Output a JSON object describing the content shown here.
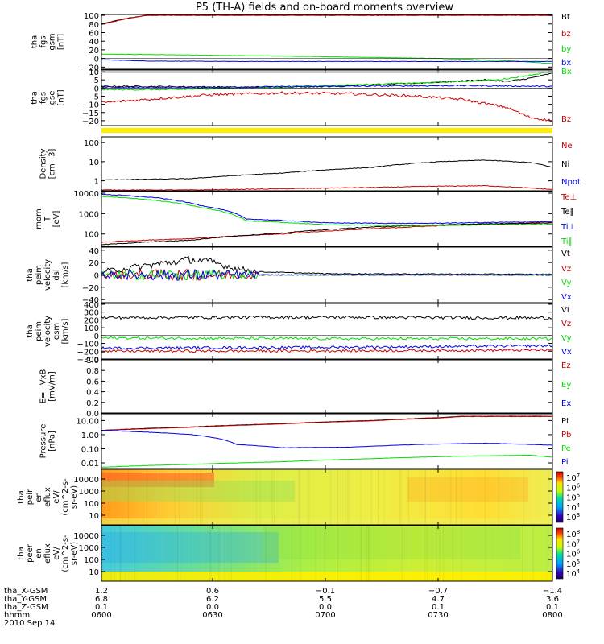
{
  "title": "P5 (TH-A) fields and on-board moments overview",
  "colors": {
    "black": "#000000",
    "red": "#cc0000",
    "green": "#00dd00",
    "blue": "#0000ee",
    "yellow": "#ffee00"
  },
  "chart_data": [
    {
      "type": "line",
      "panel": "fgs_gsm",
      "ylabel": [
        "tha",
        "fgs",
        "gsm",
        "[nT]"
      ],
      "yticks": [
        "100",
        "80",
        "60",
        "40",
        "20",
        "0",
        "−20"
      ],
      "ylim": [
        -25,
        102
      ],
      "series": [
        {
          "name": "Bt",
          "color": "#000000",
          "x": [
            0,
            0.05,
            0.1
          ],
          "y": [
            80,
            92,
            100
          ]
        },
        {
          "name": "bz",
          "color": "#cc0000",
          "x": [
            0,
            0.05,
            0.1
          ],
          "y": [
            79,
            91,
            100
          ]
        },
        {
          "name": "by",
          "color": "#00dd00",
          "x": [
            0,
            0.2,
            0.5,
            0.75,
            0.9,
            1.0
          ],
          "y": [
            10,
            8,
            4,
            0,
            -5,
            -12
          ]
        },
        {
          "name": "bx",
          "color": "#0000ee",
          "x": [
            0,
            0.1,
            0.3,
            0.5,
            0.8,
            1.0
          ],
          "y": [
            -3,
            -6,
            -7,
            -7,
            -7,
            -7
          ]
        }
      ]
    },
    {
      "type": "line",
      "panel": "fgs_gse",
      "ylabel": [
        "tha",
        "fgs",
        "gse",
        "[nT]"
      ],
      "yticks": [
        "10",
        "5",
        "0",
        "−5",
        "−10",
        "−15",
        "−20"
      ],
      "ylim": [
        -23,
        11
      ],
      "series": [
        {
          "name": "Bt",
          "color": "#000000",
          "x": [
            0,
            0.1,
            0.3,
            0.5,
            0.7,
            0.85,
            0.9,
            0.95,
            1.0
          ],
          "y": [
            1,
            1,
            0.5,
            1,
            3,
            5,
            4,
            6,
            9
          ]
        },
        {
          "name": "Bx",
          "color": "#00dd00",
          "x": [
            0,
            0.15,
            0.3,
            0.5,
            0.7,
            0.88,
            1.0
          ],
          "y": [
            -1,
            -1,
            0,
            1.5,
            3,
            5,
            10
          ]
        },
        {
          "name": "By",
          "color": "#0000ee",
          "x": [
            0,
            0.2,
            0.4,
            0.6,
            0.8,
            1.0
          ],
          "y": [
            0.5,
            0.5,
            0.8,
            1.2,
            1.5,
            1
          ]
        },
        {
          "name": "Bz",
          "color": "#cc0000",
          "x": [
            0,
            0.1,
            0.25,
            0.4,
            0.55,
            0.7,
            0.8,
            0.9,
            0.95,
            1.0
          ],
          "y": [
            -9,
            -7,
            -4,
            -3,
            -3.5,
            -5,
            -7,
            -12,
            -18,
            -20
          ]
        }
      ],
      "legend_right": [
        {
          "t": "Bz",
          "c": "#cc0000"
        }
      ]
    },
    {
      "type": "line",
      "panel": "density",
      "ylabel": [
        "Density",
        "[cm−3]"
      ],
      "yscale": "log",
      "yticks": [
        "100",
        "10",
        "1"
      ],
      "ylim": [
        0.3,
        200
      ],
      "series": [
        {
          "name": "Ne",
          "color": "#cc0000",
          "x": [
            0,
            0.2,
            0.4,
            0.6,
            0.75,
            0.85,
            1.0
          ],
          "y": [
            0.33,
            0.33,
            0.38,
            0.45,
            0.52,
            0.55,
            0.35
          ]
        },
        {
          "name": "Ni",
          "color": "#000000",
          "x": [
            0,
            0.2,
            0.4,
            0.6,
            0.75,
            0.85,
            0.95,
            1.0
          ],
          "y": [
            1.1,
            1.3,
            2.5,
            5,
            10,
            12,
            9,
            5
          ]
        },
        {
          "name": "Npot",
          "color": "#0000ee",
          "x": [],
          "y": []
        }
      ]
    },
    {
      "type": "line",
      "panel": "mom",
      "ylabel": [
        "mom",
        "T",
        "[eV]"
      ],
      "yscale": "log",
      "yticks": [
        "10000",
        "1000",
        "100"
      ],
      "ylim": [
        25,
        12000
      ],
      "series": [
        {
          "name": "Te⊥",
          "color": "#cc0000",
          "x": [
            0,
            0.2,
            0.4,
            0.6,
            0.8,
            1.0
          ],
          "y": [
            40,
            60,
            100,
            180,
            280,
            350
          ]
        },
        {
          "name": "Te∥",
          "color": "#000000",
          "x": [
            0,
            0.2,
            0.4,
            0.6,
            0.8,
            1.0
          ],
          "y": [
            30,
            50,
            110,
            220,
            300,
            360
          ]
        },
        {
          "name": "Ti⊥",
          "color": "#0000ee",
          "x": [
            0,
            0.12,
            0.22,
            0.32,
            0.5,
            0.7,
            1.0
          ],
          "y": [
            9000,
            6000,
            2500,
            550,
            350,
            330,
            400
          ]
        },
        {
          "name": "Ti∥",
          "color": "#00dd00",
          "x": [
            0,
            0.12,
            0.22,
            0.32,
            0.5,
            0.7,
            1.0
          ],
          "y": [
            7000,
            4500,
            2000,
            450,
            280,
            260,
            300
          ]
        }
      ]
    },
    {
      "type": "line",
      "panel": "peim_dsl",
      "ylabel": [
        "tha",
        "peim",
        "velocity",
        "dsl",
        "[km/s]"
      ],
      "yticks": [
        "40",
        "20",
        "0",
        "−20",
        "−40"
      ],
      "ylim": [
        -45,
        45
      ],
      "series": [
        {
          "name": "Vt",
          "color": "#000000",
          "x": [
            0,
            0.1,
            0.2,
            0.25,
            0.3,
            0.35,
            0.5,
            1.0
          ],
          "y": [
            5,
            15,
            25,
            20,
            10,
            5,
            2,
            1
          ]
        },
        {
          "name": "Vz",
          "color": "#cc0000",
          "x": [
            0,
            0.3,
            1.0
          ],
          "y": [
            0,
            0,
            0
          ]
        },
        {
          "name": "Vy",
          "color": "#00dd00",
          "x": [
            0,
            0.3,
            1.0
          ],
          "y": [
            0,
            0,
            0
          ]
        },
        {
          "name": "Vx",
          "color": "#0000ee",
          "x": [
            0,
            0.3,
            1.0
          ],
          "y": [
            0,
            0,
            0
          ]
        }
      ]
    },
    {
      "type": "line",
      "panel": "peim_gsm",
      "ylabel": [
        "tha",
        "peim",
        "velocity",
        "gsm",
        "[km/s]"
      ],
      "yticks": [
        "400",
        "300",
        "200",
        "100",
        "0",
        "−100",
        "−200",
        "−300"
      ],
      "ylim": [
        -300,
        410
      ],
      "series": [
        {
          "name": "Vt",
          "color": "#000000",
          "x": [
            0,
            0.5,
            1.0
          ],
          "y": [
            230,
            235,
            225
          ]
        },
        {
          "name": "Vz",
          "color": "#cc0000",
          "x": [
            0,
            0.5,
            1.0
          ],
          "y": [
            -200,
            -195,
            -185
          ]
        },
        {
          "name": "Vy",
          "color": "#00dd00",
          "x": [
            0,
            0.5,
            1.0
          ],
          "y": [
            -30,
            -40,
            -40
          ]
        },
        {
          "name": "Vx",
          "color": "#0000ee",
          "x": [
            0,
            0.5,
            1.0
          ],
          "y": [
            -160,
            -150,
            -130
          ]
        }
      ]
    },
    {
      "type": "line",
      "panel": "exb",
      "ylabel": [
        "E=−VxB",
        "[mV/m]"
      ],
      "yticks": [
        "1.0",
        "0.8",
        "0.6",
        "0.4",
        "0.2",
        "0.0"
      ],
      "ylim": [
        0,
        1
      ],
      "series": [
        {
          "name": "Ez",
          "color": "#cc0000",
          "x": [],
          "y": []
        },
        {
          "name": "Ey",
          "color": "#00dd00",
          "x": [],
          "y": []
        },
        {
          "name": "Ex",
          "color": "#0000ee",
          "x": [],
          "y": []
        }
      ]
    },
    {
      "type": "line",
      "panel": "pressure",
      "ylabel": [
        "Pressure",
        "[nPa]"
      ],
      "yscale": "log",
      "yticks": [
        "10.00",
        "1.00",
        "0.10",
        "0.01"
      ],
      "ylim": [
        0.004,
        30
      ],
      "series": [
        {
          "name": "Pt",
          "color": "#000000",
          "x": [
            0,
            0.2,
            0.4,
            0.6,
            0.75,
            0.8
          ],
          "y": [
            2,
            3.5,
            6,
            10,
            16,
            20
          ]
        },
        {
          "name": "Pb",
          "color": "#cc0000",
          "x": [
            0,
            0.2,
            0.4,
            0.6,
            0.75,
            0.8
          ],
          "y": [
            1.9,
            3.3,
            5.7,
            9.5,
            15,
            19
          ]
        },
        {
          "name": "Pe",
          "color": "#00dd00",
          "x": [
            0,
            0.2,
            0.4,
            0.6,
            0.8,
            0.95,
            1.0
          ],
          "y": [
            0.005,
            0.008,
            0.012,
            0.02,
            0.03,
            0.035,
            0.025
          ]
        },
        {
          "name": "Pi",
          "color": "#0000ee",
          "x": [
            0,
            0.2,
            0.3,
            0.4,
            0.55,
            0.7,
            0.85,
            1.0
          ],
          "y": [
            2,
            1,
            0.2,
            0.12,
            0.13,
            0.2,
            0.25,
            0.18
          ]
        }
      ]
    },
    {
      "type": "heatmap",
      "panel": "ion_eflux",
      "ylabel": [
        "tha",
        "peir",
        "en",
        "eflux",
        "eV/",
        "(cm^2-s-",
        "sr-eV)"
      ],
      "yscale": "log",
      "yticks": [
        "10000",
        "1000",
        "100",
        "10"
      ],
      "colorbar_ticks": [
        "10^7",
        "10^6",
        "10^5",
        "10^4",
        "10^3"
      ]
    },
    {
      "type": "heatmap",
      "panel": "electron_eflux",
      "ylabel": [
        "tha",
        "peer",
        "en",
        "eflux",
        "eV/",
        "(cm^2-s-",
        "sr-eV)"
      ],
      "yscale": "log",
      "yticks": [
        "10000",
        "1000",
        "100",
        "10"
      ],
      "colorbar_ticks": [
        "10^8",
        "10^7",
        "10^6",
        "10^5",
        "10^4"
      ]
    }
  ],
  "legends": [
    [
      {
        "t": "Bt",
        "c": "#000000"
      },
      {
        "t": "bz",
        "c": "#cc0000"
      },
      {
        "t": "by",
        "c": "#00dd00"
      },
      {
        "t": "bx",
        "c": "#0000ee"
      }
    ],
    [
      {
        "t": "Bx",
        "c": "#00dd00"
      },
      {
        "t": "Bz",
        "c": "#cc0000"
      }
    ],
    [
      {
        "t": "Ne",
        "c": "#cc0000"
      },
      {
        "t": "Ni",
        "c": "#000000"
      },
      {
        "t": "Npot",
        "c": "#0000ee"
      }
    ],
    [
      {
        "t": "Te⊥",
        "c": "#cc0000"
      },
      {
        "t": "Te∥",
        "c": "#000000"
      },
      {
        "t": "Ti⊥",
        "c": "#0000ee"
      },
      {
        "t": "Ti∥",
        "c": "#00dd00"
      }
    ],
    [
      {
        "t": "Vt",
        "c": "#000000"
      },
      {
        "t": "Vz",
        "c": "#cc0000"
      },
      {
        "t": "Vy",
        "c": "#00dd00"
      },
      {
        "t": "Vx",
        "c": "#0000ee"
      }
    ],
    [
      {
        "t": "Vt",
        "c": "#000000"
      },
      {
        "t": "Vz",
        "c": "#cc0000"
      },
      {
        "t": "Vy",
        "c": "#00dd00"
      },
      {
        "t": "Vx",
        "c": "#0000ee"
      }
    ],
    [
      {
        "t": "Ez",
        "c": "#cc0000"
      },
      {
        "t": "Ey",
        "c": "#00dd00"
      },
      {
        "t": "Ex",
        "c": "#0000ee"
      }
    ],
    [
      {
        "t": "Pt",
        "c": "#000000"
      },
      {
        "t": "Pb",
        "c": "#cc0000"
      },
      {
        "t": "Pe",
        "c": "#00dd00"
      },
      {
        "t": "Pi",
        "c": "#0000ee"
      }
    ]
  ],
  "bottom_axis": {
    "row_labels": [
      "tha_X-GSM",
      "tha_Y-GSM",
      "tha_Z-GSM",
      "hhmm",
      "2010 Sep 14"
    ],
    "ticks": [
      {
        "x_gsm": "1.2",
        "y_gsm": "6.8",
        "z_gsm": "0.1",
        "hhmm": "0600"
      },
      {
        "x_gsm": "0.6",
        "y_gsm": "6.2",
        "z_gsm": "0.0",
        "hhmm": "0630"
      },
      {
        "x_gsm": "−0.1",
        "y_gsm": "5.5",
        "z_gsm": "0.0",
        "hhmm": "0700"
      },
      {
        "x_gsm": "−0.7",
        "y_gsm": "4.7",
        "z_gsm": "0.1",
        "hhmm": "0730"
      },
      {
        "x_gsm": "−1.4",
        "y_gsm": "3.6",
        "z_gsm": "0.1",
        "hhmm": "0800"
      }
    ]
  }
}
